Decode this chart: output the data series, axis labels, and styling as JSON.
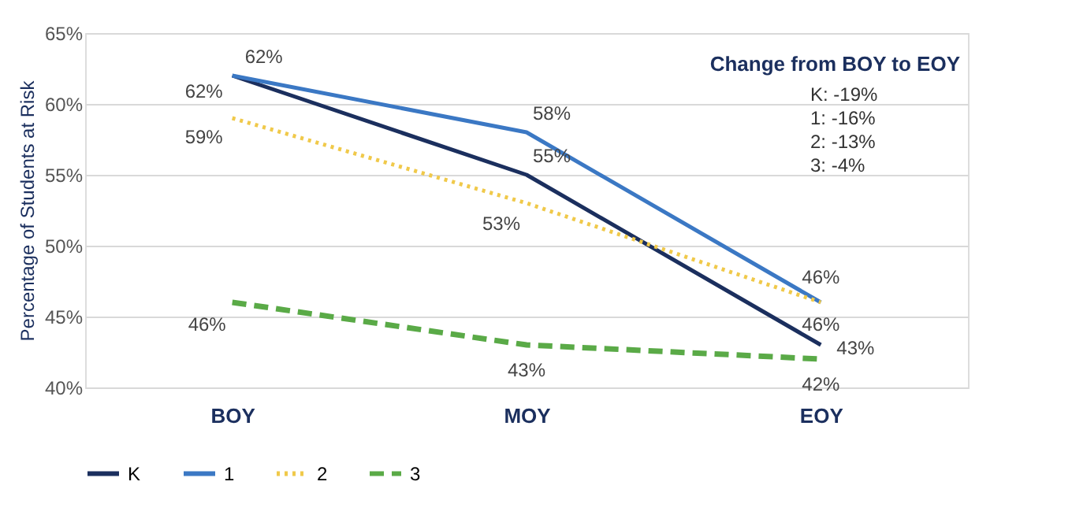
{
  "chart_data": {
    "type": "line",
    "ylabel": "Percentage of Students at Risk",
    "categories": [
      "BOY",
      "MOY",
      "EOY"
    ],
    "series": [
      {
        "name": "K",
        "color": "#1b2f5e",
        "values": [
          62,
          55,
          43
        ],
        "line_style": "solid",
        "value_labels": [
          "62%",
          "55%",
          "43%"
        ]
      },
      {
        "name": "1",
        "color": "#3b78c4",
        "values": [
          62,
          58,
          46
        ],
        "line_style": "solid",
        "value_labels": [
          "62%",
          "58%",
          "46%"
        ]
      },
      {
        "name": "2",
        "color": "#f0c94a",
        "values": [
          59,
          53,
          46
        ],
        "line_style": "dotted",
        "value_labels": [
          "59%",
          "53%",
          "46%"
        ]
      },
      {
        "name": "3",
        "color": "#5aaa47",
        "values": [
          46,
          43,
          42
        ],
        "line_style": "dashed",
        "value_labels": [
          "46%",
          "43%",
          "42%"
        ]
      }
    ],
    "ylim": [
      40,
      65
    ],
    "yticks": [
      {
        "value": 40,
        "label": "40%"
      },
      {
        "value": 45,
        "label": "45%"
      },
      {
        "value": 50,
        "label": "50%"
      },
      {
        "value": 55,
        "label": "55%"
      },
      {
        "value": 60,
        "label": "60%"
      },
      {
        "value": 65,
        "label": "65%"
      }
    ],
    "grid": "y",
    "legend": "bottom",
    "annotations": [
      "Change from BOY to EOY",
      "K: -19%",
      "1: -16%",
      "2: -13%",
      "3: -4%"
    ]
  }
}
